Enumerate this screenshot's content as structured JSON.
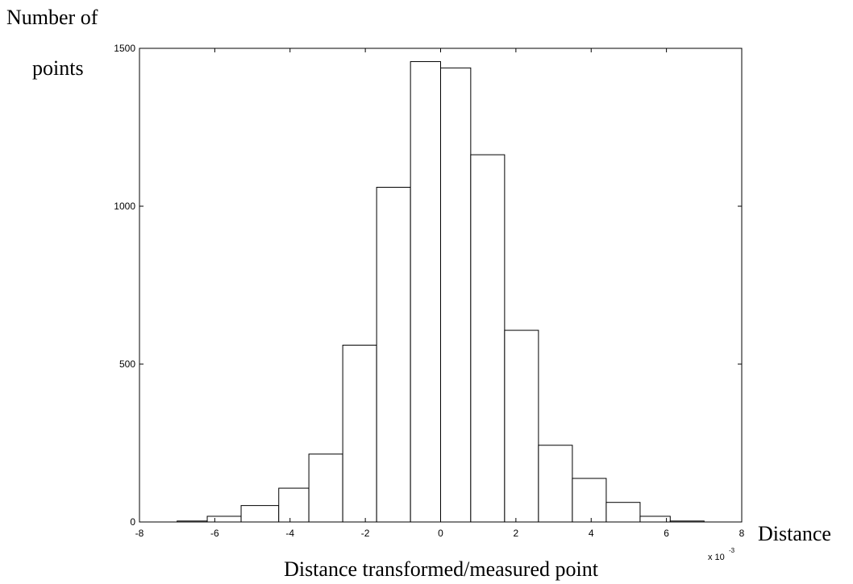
{
  "chart_data": {
    "type": "bar",
    "title": "",
    "xlabel": "Distance transformed/measured point",
    "ylabel_line1": "Number of",
    "ylabel_line2": "points",
    "x_side_label": "Distance",
    "x_multiplier_text": "x 10",
    "x_multiplier_exp": "-3",
    "xlim": [
      -8,
      8
    ],
    "ylim": [
      0,
      1500
    ],
    "grid": false,
    "xticks": [
      -8,
      -6,
      -4,
      -2,
      0,
      2,
      4,
      6,
      8
    ],
    "yticks": [
      0,
      500,
      1000,
      1500
    ],
    "bins": [
      {
        "x0": -7.0,
        "x1": -6.2,
        "value": 3
      },
      {
        "x0": -6.2,
        "x1": -5.3,
        "value": 18
      },
      {
        "x0": -5.3,
        "x1": -4.3,
        "value": 52
      },
      {
        "x0": -4.3,
        "x1": -3.5,
        "value": 107
      },
      {
        "x0": -3.5,
        "x1": -2.6,
        "value": 215
      },
      {
        "x0": -2.6,
        "x1": -1.7,
        "value": 560
      },
      {
        "x0": -1.7,
        "x1": -0.8,
        "value": 1060
      },
      {
        "x0": -0.8,
        "x1": 0.0,
        "value": 1458
      },
      {
        "x0": 0.0,
        "x1": 0.8,
        "value": 1438
      },
      {
        "x0": 0.8,
        "x1": 1.7,
        "value": 1163
      },
      {
        "x0": 1.7,
        "x1": 2.6,
        "value": 607
      },
      {
        "x0": 2.6,
        "x1": 3.5,
        "value": 243
      },
      {
        "x0": 3.5,
        "x1": 4.4,
        "value": 138
      },
      {
        "x0": 4.4,
        "x1": 5.3,
        "value": 62
      },
      {
        "x0": 5.3,
        "x1": 6.1,
        "value": 18
      },
      {
        "x0": 6.1,
        "x1": 7.0,
        "value": 3
      }
    ]
  }
}
